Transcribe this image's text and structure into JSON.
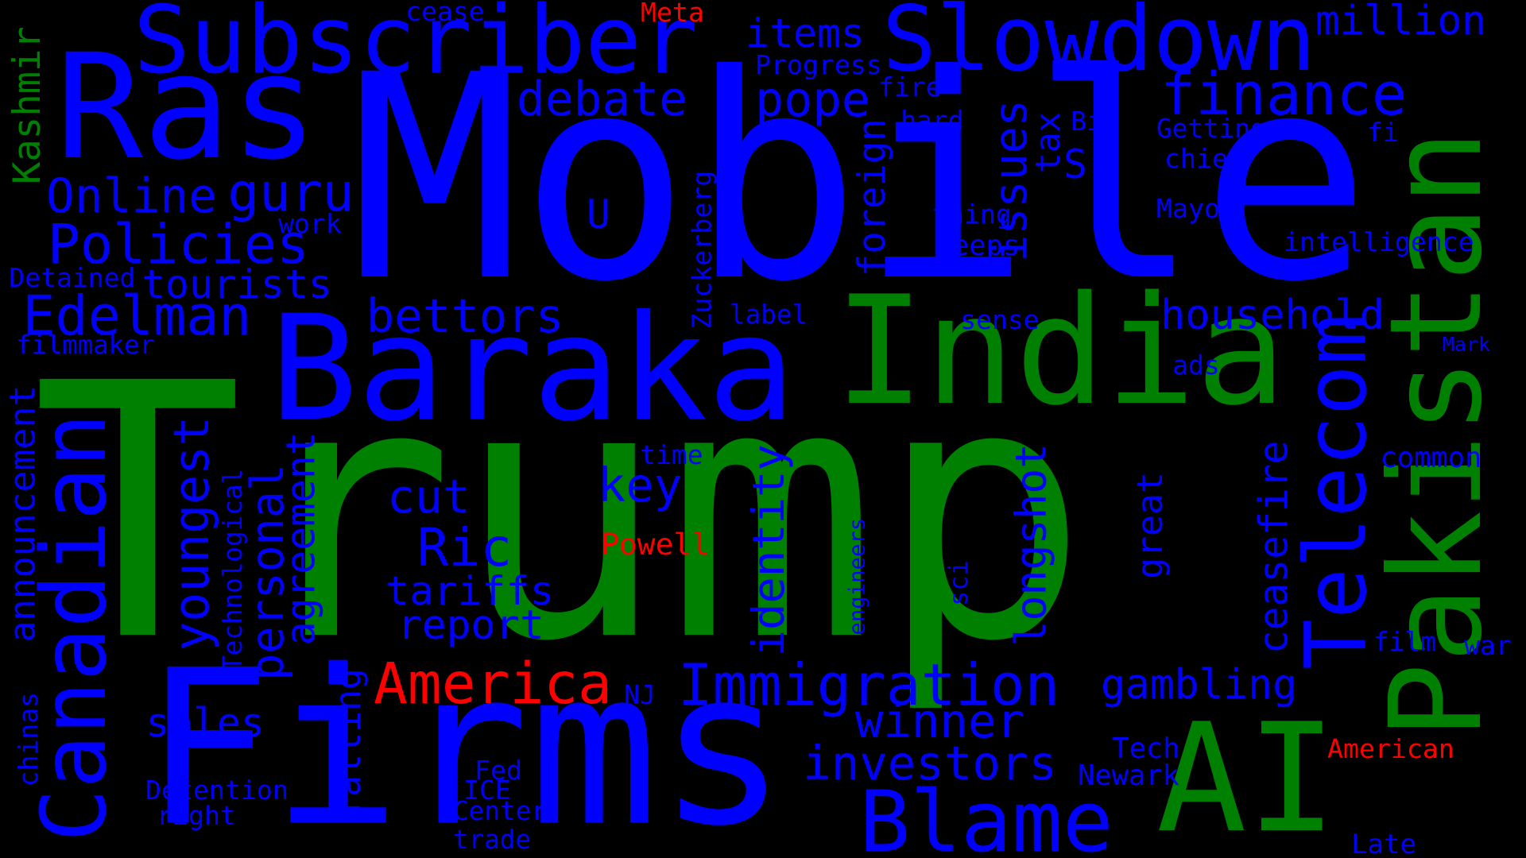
{
  "palette": {
    "background": "#000000",
    "blue": "#0000FF",
    "green": "#008000",
    "red": "#FF0000"
  },
  "words": [
    {
      "text": "Trump",
      "color": "green"
    },
    {
      "text": "Mobile",
      "color": "blue"
    },
    {
      "text": "Firms",
      "color": "blue"
    },
    {
      "text": "Ras",
      "color": "blue"
    },
    {
      "text": "Pakistan",
      "color": "green"
    },
    {
      "text": "India",
      "color": "green"
    },
    {
      "text": "Baraka",
      "color": "blue"
    },
    {
      "text": "Subscriber",
      "color": "blue"
    },
    {
      "text": "AI",
      "color": "green"
    },
    {
      "text": "Slowdown",
      "color": "blue"
    },
    {
      "text": "Canadian",
      "color": "blue"
    },
    {
      "text": "Telecom",
      "color": "blue"
    },
    {
      "text": "Blame",
      "color": "blue"
    },
    {
      "text": "Immigration",
      "color": "blue"
    },
    {
      "text": "America",
      "color": "red"
    },
    {
      "text": "finance",
      "color": "blue"
    },
    {
      "text": "household",
      "color": "blue"
    },
    {
      "text": "Edelman",
      "color": "blue"
    },
    {
      "text": "Policies",
      "color": "blue"
    },
    {
      "text": "youngest",
      "color": "blue"
    },
    {
      "text": "personal",
      "color": "blue"
    },
    {
      "text": "guru",
      "color": "blue"
    },
    {
      "text": "identity",
      "color": "blue"
    },
    {
      "text": "longshot",
      "color": "blue"
    },
    {
      "text": "issues",
      "color": "blue"
    },
    {
      "text": "debate",
      "color": "blue"
    },
    {
      "text": "pope",
      "color": "blue"
    },
    {
      "text": "million",
      "color": "blue"
    },
    {
      "text": "Online",
      "color": "blue"
    },
    {
      "text": "tourists",
      "color": "blue"
    },
    {
      "text": "bettors",
      "color": "blue"
    },
    {
      "text": "cut",
      "color": "blue"
    },
    {
      "text": "Ric",
      "color": "blue"
    },
    {
      "text": "tariffs",
      "color": "blue"
    },
    {
      "text": "report",
      "color": "blue"
    },
    {
      "text": "key",
      "color": "blue"
    },
    {
      "text": "winner",
      "color": "blue"
    },
    {
      "text": "investors",
      "color": "blue"
    },
    {
      "text": "gambling",
      "color": "blue"
    },
    {
      "text": "sales",
      "color": "blue"
    },
    {
      "text": "ceasefire",
      "color": "blue"
    },
    {
      "text": "agreement",
      "color": "blue"
    },
    {
      "text": "announcement",
      "color": "blue"
    },
    {
      "text": "foreign",
      "color": "blue"
    },
    {
      "text": "items",
      "color": "blue"
    },
    {
      "text": "tax",
      "color": "blue"
    },
    {
      "text": "S",
      "color": "blue"
    },
    {
      "text": "U",
      "color": "blue"
    },
    {
      "text": "falling",
      "color": "blue"
    },
    {
      "text": "great",
      "color": "blue"
    },
    {
      "text": "Kashmir",
      "color": "green"
    },
    {
      "text": "American",
      "color": "red"
    },
    {
      "text": "Powell",
      "color": "red"
    },
    {
      "text": "Meta",
      "color": "red"
    },
    {
      "text": "cease",
      "color": "blue"
    },
    {
      "text": "Progress",
      "color": "blue"
    },
    {
      "text": "fire",
      "color": "blue"
    },
    {
      "text": "hard",
      "color": "blue"
    },
    {
      "text": "Big",
      "color": "blue"
    },
    {
      "text": "Getting",
      "color": "blue"
    },
    {
      "text": "chief",
      "color": "blue"
    },
    {
      "text": "fi",
      "color": "blue"
    },
    {
      "text": "thing",
      "color": "blue"
    },
    {
      "text": "Keeps",
      "color": "blue"
    },
    {
      "text": "Mayor",
      "color": "blue"
    },
    {
      "text": "intelligence",
      "color": "blue"
    },
    {
      "text": "work",
      "color": "blue"
    },
    {
      "text": "Detained",
      "color": "blue"
    },
    {
      "text": "filmmaker",
      "color": "blue"
    },
    {
      "text": "label",
      "color": "blue"
    },
    {
      "text": "sense",
      "color": "blue"
    },
    {
      "text": "Zuckerberg",
      "color": "blue"
    },
    {
      "text": "ads",
      "color": "blue"
    },
    {
      "text": "Mark",
      "color": "blue"
    },
    {
      "text": "time",
      "color": "blue"
    },
    {
      "text": "common",
      "color": "blue"
    },
    {
      "text": "Technological",
      "color": "blue"
    },
    {
      "text": "engineers",
      "color": "blue"
    },
    {
      "text": "sci",
      "color": "blue"
    },
    {
      "text": "film",
      "color": "blue"
    },
    {
      "text": "war",
      "color": "blue"
    },
    {
      "text": "NJ",
      "color": "blue"
    },
    {
      "text": "Tech",
      "color": "blue"
    },
    {
      "text": "Newark",
      "color": "blue"
    },
    {
      "text": "Fed",
      "color": "blue"
    },
    {
      "text": "ICE",
      "color": "blue"
    },
    {
      "text": "Center",
      "color": "blue"
    },
    {
      "text": "trade",
      "color": "blue"
    },
    {
      "text": "Detention",
      "color": "blue"
    },
    {
      "text": "right",
      "color": "blue"
    },
    {
      "text": "chinas",
      "color": "blue"
    },
    {
      "text": "Late",
      "color": "blue"
    }
  ]
}
